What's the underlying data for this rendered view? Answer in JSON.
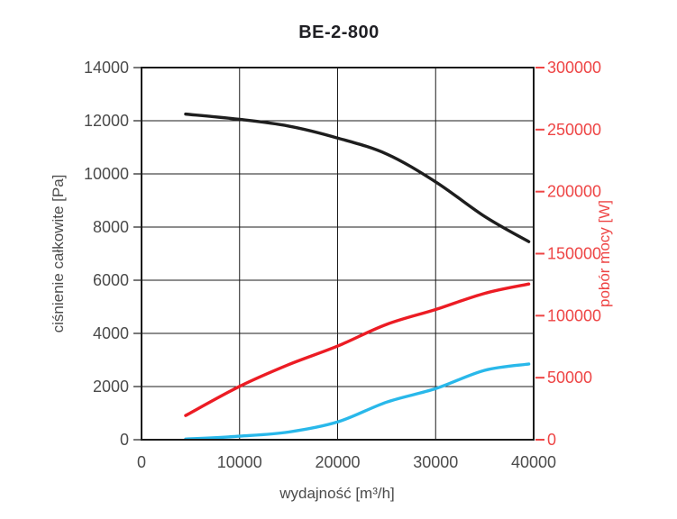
{
  "title": "BE-2-800",
  "colors": {
    "background": "#ffffff",
    "grid": "#1b1b1b",
    "axis_text": "#4b4b4b",
    "right_axis_red": "#ee4545",
    "curve_black": "#1e1e1e",
    "curve_red": "#ec1c24",
    "curve_blue": "#29b8ea"
  },
  "chart_data": {
    "type": "line",
    "title": "BE-2-800",
    "xlabel": "wydajność [m³/h]",
    "ylabel_left": "ciśnienie całkowite [Pa]",
    "ylabel_right": "pobór mocy [W]",
    "xlim": [
      0,
      40000
    ],
    "x_ticks": [
      0,
      10000,
      20000,
      30000,
      40000
    ],
    "ylim_left": [
      0,
      14000
    ],
    "y_ticks_left": [
      0,
      2000,
      4000,
      6000,
      8000,
      10000,
      12000,
      14000
    ],
    "ylim_right": [
      0,
      300000
    ],
    "y_ticks_right": [
      0,
      50000,
      100000,
      150000,
      200000,
      250000,
      300000
    ],
    "grid": true,
    "legend": "none",
    "series": [
      {
        "label": "ciśnienie całkowite (krzywa czarna)",
        "color": "#1e1e1e",
        "axis": "left",
        "unit": "Pa",
        "x": [
          4500,
          10000,
          15000,
          20000,
          25000,
          30000,
          35000,
          39500
        ],
        "y": [
          12250,
          12050,
          11800,
          11350,
          10750,
          9700,
          8400,
          7450
        ]
      },
      {
        "label": "pobór mocy (krzywa czerwona)",
        "color": "#ec1c24",
        "axis": "right",
        "unit": "W",
        "x": [
          4500,
          10000,
          15000,
          20000,
          25000,
          30000,
          35000,
          39500
        ],
        "y": [
          19500,
          43000,
          60500,
          75500,
          93000,
          105000,
          118000,
          125500
        ]
      },
      {
        "label": "krzywa niebieska",
        "color": "#29b8ea",
        "axis": "right",
        "unit": "W",
        "x": [
          4500,
          10000,
          15000,
          20000,
          25000,
          30000,
          35000,
          39500
        ],
        "y": [
          500,
          2800,
          6200,
          14300,
          30300,
          41200,
          55900,
          61000
        ]
      }
    ]
  }
}
